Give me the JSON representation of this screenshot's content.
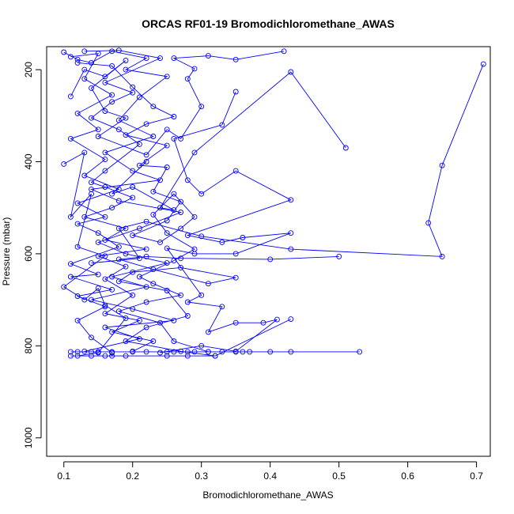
{
  "chart_data": {
    "type": "line",
    "title": "ORCAS RF01-19 Bromodichloromethane_AWAS",
    "xlabel": "Bromodichloromethane_AWAS",
    "ylabel": "Pressure (mbar)",
    "xlim": [
      0.075,
      0.72
    ],
    "ylim": [
      1040,
      150
    ],
    "y_reversed": true,
    "x_ticks": [
      "0.1",
      "0.2",
      "0.3",
      "0.4",
      "0.5",
      "0.6",
      "0.7"
    ],
    "y_ticks": [
      "200",
      "400",
      "600",
      "800",
      "1000"
    ],
    "grid": false,
    "legend": "none",
    "color": "#0000ff",
    "marker": "open-circle",
    "series": [
      {
        "points": [
          [
            0.1,
            162
          ],
          [
            0.12,
            178
          ],
          [
            0.14,
            185
          ],
          [
            0.17,
            160
          ],
          [
            0.22,
            175
          ],
          [
            0.19,
            200
          ],
          [
            0.25,
            215
          ],
          [
            0.21,
            260
          ],
          [
            0.18,
            310
          ],
          [
            0.23,
            345
          ],
          [
            0.16,
            380
          ],
          [
            0.2,
            420
          ],
          [
            0.24,
            440
          ],
          [
            0.14,
            460
          ],
          [
            0.18,
            485
          ],
          [
            0.27,
            510
          ],
          [
            0.21,
            545
          ],
          [
            0.15,
            575
          ],
          [
            0.19,
            600
          ],
          [
            0.25,
            620
          ],
          [
            0.17,
            650
          ],
          [
            0.22,
            672
          ],
          [
            0.14,
            700
          ],
          [
            0.2,
            720
          ],
          [
            0.26,
            745
          ],
          [
            0.16,
            760
          ],
          [
            0.21,
            785
          ],
          [
            0.13,
            812
          ]
        ]
      },
      {
        "points": [
          [
            0.11,
            172
          ],
          [
            0.15,
            165
          ],
          [
            0.13,
            220
          ],
          [
            0.17,
            255
          ],
          [
            0.12,
            295
          ],
          [
            0.15,
            330
          ],
          [
            0.11,
            350
          ],
          [
            0.16,
            395
          ],
          [
            0.13,
            430
          ],
          [
            0.18,
            460
          ],
          [
            0.12,
            490
          ],
          [
            0.16,
            520
          ],
          [
            0.12,
            535
          ],
          [
            0.15,
            555
          ],
          [
            0.18,
            585
          ],
          [
            0.11,
            622
          ],
          [
            0.15,
            645
          ],
          [
            0.11,
            650
          ],
          [
            0.17,
            678
          ],
          [
            0.12,
            692
          ],
          [
            0.16,
            715
          ],
          [
            0.12,
            745
          ],
          [
            0.14,
            782
          ],
          [
            0.17,
            815
          ]
        ]
      },
      {
        "points": [
          [
            0.1,
            405
          ],
          [
            0.13,
            380
          ],
          [
            0.11,
            520
          ],
          [
            0.14,
            470
          ],
          [
            0.12,
            585
          ],
          [
            0.16,
            605
          ],
          [
            0.1,
            672
          ],
          [
            0.13,
            700
          ],
          [
            0.15,
            675
          ],
          [
            0.16,
            712
          ],
          [
            0.19,
            740
          ],
          [
            0.15,
            815
          ],
          [
            0.12,
            822
          ]
        ]
      },
      {
        "points": [
          [
            0.71,
            188
          ],
          [
            0.65,
            408
          ],
          [
            0.63,
            533
          ],
          [
            0.65,
            606
          ],
          [
            0.43,
            590
          ],
          [
            0.3,
            562
          ],
          [
            0.22,
            530
          ],
          [
            0.18,
            545
          ],
          [
            0.21,
            610
          ],
          [
            0.14,
            620
          ]
        ]
      },
      {
        "points": [
          [
            0.51,
            370
          ],
          [
            0.43,
            205
          ],
          [
            0.29,
            380
          ],
          [
            0.24,
            500
          ],
          [
            0.26,
            505
          ],
          [
            0.2,
            455
          ],
          [
            0.17,
            470
          ],
          [
            0.22,
            400
          ]
        ]
      },
      {
        "points": [
          [
            0.35,
            248
          ],
          [
            0.33,
            320
          ],
          [
            0.26,
            350
          ],
          [
            0.28,
            440
          ],
          [
            0.3,
            470
          ],
          [
            0.35,
            420
          ],
          [
            0.43,
            483
          ],
          [
            0.28,
            560
          ],
          [
            0.33,
            575
          ],
          [
            0.36,
            565
          ],
          [
            0.43,
            555
          ],
          [
            0.35,
            600
          ],
          [
            0.29,
            600
          ],
          [
            0.25,
            588
          ],
          [
            0.3,
            690
          ],
          [
            0.28,
            705
          ],
          [
            0.33,
            715
          ],
          [
            0.31,
            770
          ],
          [
            0.35,
            750
          ],
          [
            0.39,
            750
          ],
          [
            0.41,
            743
          ],
          [
            0.35,
            812
          ],
          [
            0.3,
            800
          ],
          [
            0.24,
            815
          ]
        ]
      },
      {
        "points": [
          [
            0.5,
            606
          ],
          [
            0.4,
            612
          ],
          [
            0.27,
            610
          ],
          [
            0.22,
            606
          ],
          [
            0.18,
            612
          ],
          [
            0.23,
            634
          ],
          [
            0.31,
            665
          ],
          [
            0.35,
            652
          ],
          [
            0.27,
            630
          ],
          [
            0.2,
            640
          ],
          [
            0.18,
            660
          ],
          [
            0.25,
            680
          ],
          [
            0.28,
            735
          ],
          [
            0.22,
            760
          ],
          [
            0.19,
            790
          ],
          [
            0.27,
            812
          ],
          [
            0.32,
            822
          ],
          [
            0.43,
            742
          ]
        ]
      },
      {
        "points": [
          [
            0.53,
            813
          ],
          [
            0.43,
            813
          ],
          [
            0.4,
            813
          ],
          [
            0.37,
            813
          ],
          [
            0.36,
            813
          ],
          [
            0.35,
            813
          ],
          [
            0.33,
            813
          ],
          [
            0.31,
            813
          ],
          [
            0.29,
            813
          ],
          [
            0.28,
            813
          ],
          [
            0.26,
            813
          ],
          [
            0.25,
            813
          ],
          [
            0.22,
            813
          ],
          [
            0.2,
            813
          ],
          [
            0.17,
            813
          ],
          [
            0.15,
            813
          ],
          [
            0.14,
            813
          ],
          [
            0.12,
            813
          ],
          [
            0.11,
            813
          ]
        ]
      },
      {
        "points": [
          [
            0.11,
            822
          ],
          [
            0.14,
            822
          ],
          [
            0.16,
            822
          ],
          [
            0.17,
            822
          ],
          [
            0.19,
            822
          ],
          [
            0.25,
            822
          ],
          [
            0.28,
            822
          ],
          [
            0.32,
            822
          ]
        ]
      },
      {
        "points": [
          [
            0.11,
            258
          ],
          [
            0.13,
            200
          ],
          [
            0.16,
            215
          ],
          [
            0.19,
            180
          ],
          [
            0.14,
            240
          ],
          [
            0.16,
            290
          ],
          [
            0.19,
            305
          ],
          [
            0.15,
            345
          ],
          [
            0.22,
            385
          ],
          [
            0.25,
            330
          ],
          [
            0.27,
            350
          ],
          [
            0.3,
            280
          ],
          [
            0.28,
            220
          ],
          [
            0.29,
            198
          ],
          [
            0.26,
            175
          ],
          [
            0.31,
            170
          ],
          [
            0.35,
            178
          ],
          [
            0.42,
            160
          ]
        ]
      },
      {
        "points": [
          [
            0.12,
            185
          ],
          [
            0.17,
            192
          ],
          [
            0.2,
            238
          ],
          [
            0.23,
            280
          ],
          [
            0.26,
            302
          ],
          [
            0.22,
            318
          ],
          [
            0.19,
            342
          ],
          [
            0.25,
            365
          ],
          [
            0.21,
            408
          ],
          [
            0.25,
            412
          ],
          [
            0.23,
            465
          ],
          [
            0.27,
            487
          ],
          [
            0.25,
            528
          ],
          [
            0.2,
            560
          ],
          [
            0.24,
            575
          ],
          [
            0.27,
            545
          ],
          [
            0.29,
            520
          ],
          [
            0.26,
            470
          ],
          [
            0.23,
            515
          ],
          [
            0.25,
            555
          ],
          [
            0.29,
            590
          ],
          [
            0.26,
            615
          ],
          [
            0.21,
            650
          ],
          [
            0.23,
            665
          ],
          [
            0.27,
            690
          ],
          [
            0.22,
            705
          ],
          [
            0.18,
            725
          ],
          [
            0.24,
            750
          ],
          [
            0.26,
            790
          ],
          [
            0.31,
            813
          ]
        ]
      },
      {
        "points": [
          [
            0.13,
            160
          ],
          [
            0.18,
            158
          ],
          [
            0.24,
            175
          ],
          [
            0.16,
            228
          ],
          [
            0.2,
            250
          ],
          [
            0.17,
            270
          ],
          [
            0.14,
            305
          ],
          [
            0.18,
            330
          ],
          [
            0.21,
            362
          ],
          [
            0.16,
            420
          ],
          [
            0.14,
            445
          ],
          [
            0.16,
            455
          ],
          [
            0.2,
            478
          ],
          [
            0.17,
            500
          ],
          [
            0.13,
            520
          ],
          [
            0.19,
            545
          ],
          [
            0.16,
            570
          ],
          [
            0.22,
            590
          ],
          [
            0.15,
            605
          ],
          [
            0.19,
            628
          ],
          [
            0.16,
            655
          ],
          [
            0.2,
            690
          ],
          [
            0.16,
            730
          ],
          [
            0.21,
            745
          ],
          [
            0.17,
            770
          ],
          [
            0.23,
            790
          ],
          [
            0.2,
            812
          ]
        ]
      }
    ]
  }
}
